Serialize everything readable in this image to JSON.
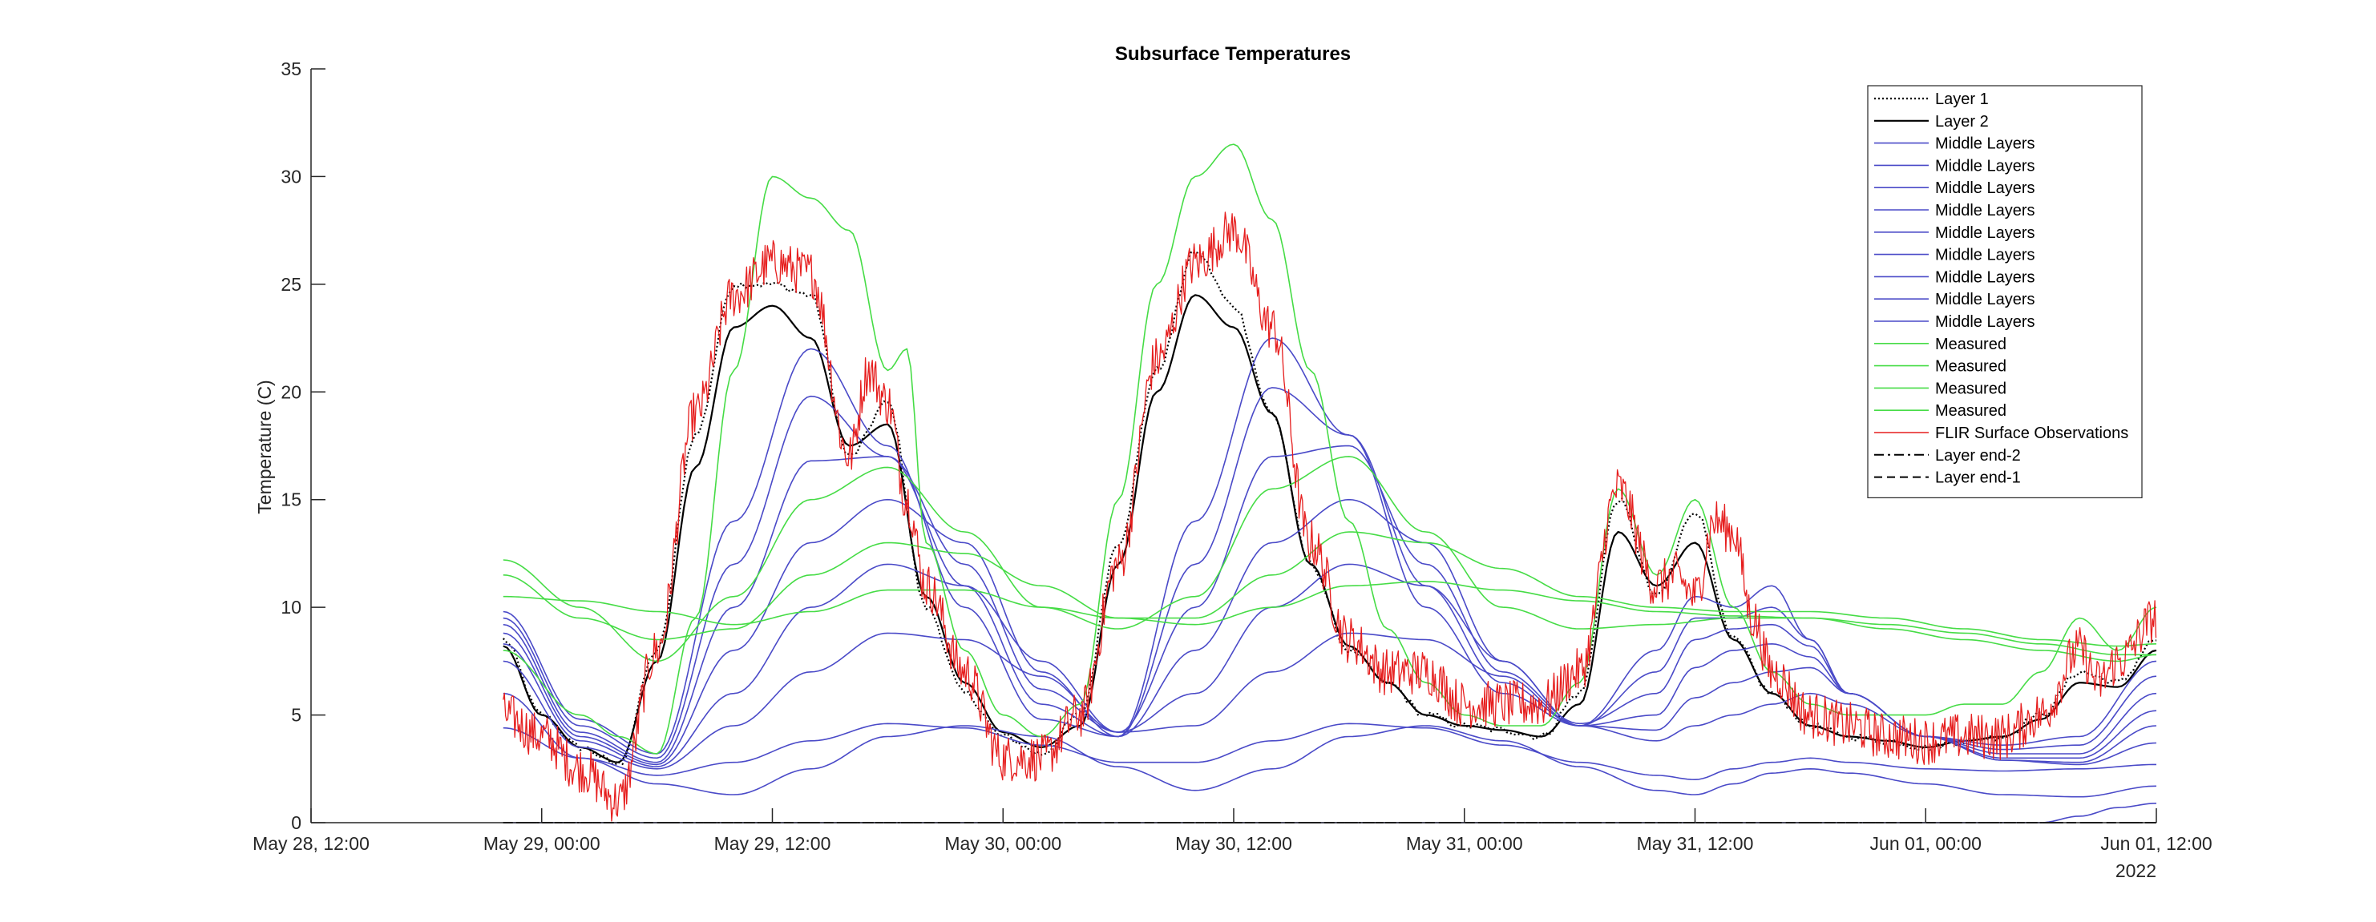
{
  "chart_data": {
    "type": "line",
    "title": "Subsurface Temperatures",
    "ylabel": "Temperature (C)",
    "xlabel": "",
    "x_unit": "hours since May 28, 12:00 (2022)",
    "xlim": [
      0,
      96
    ],
    "ylim": [
      0,
      35
    ],
    "yticks": [
      0,
      5,
      10,
      15,
      20,
      25,
      30,
      35
    ],
    "xticks": [
      {
        "value": 0,
        "label": "May 28, 12:00"
      },
      {
        "value": 12,
        "label": "May 29, 00:00"
      },
      {
        "value": 24,
        "label": "May 29, 12:00"
      },
      {
        "value": 36,
        "label": "May 30, 00:00"
      },
      {
        "value": 48,
        "label": "May 30, 12:00"
      },
      {
        "value": 60,
        "label": "May 31, 00:00"
      },
      {
        "value": 72,
        "label": "May 31, 12:00"
      },
      {
        "value": 84,
        "label": "Jun 01, 00:00"
      },
      {
        "value": 96,
        "label": "Jun 01, 12:00"
      }
    ],
    "year_label": "2022",
    "grid": false,
    "legend_position": "top-right",
    "series": [
      {
        "name": "Layer 1",
        "color": "#000000",
        "style": "dotted",
        "width": 2.2,
        "x": [
          10,
          12,
          14,
          16,
          18,
          20,
          22,
          24,
          26,
          28,
          30,
          32,
          34,
          36,
          38,
          40,
          42,
          44,
          46,
          48,
          50,
          52,
          54,
          56,
          58,
          60,
          62,
          64,
          66,
          68,
          70,
          72,
          74,
          76,
          78,
          80,
          82,
          84,
          86,
          88,
          90,
          92,
          94,
          96
        ],
        "y": [
          8.5,
          5.0,
          3.5,
          2.7,
          8.0,
          18.0,
          25.0,
          25.0,
          24.5,
          17.0,
          19.5,
          10.0,
          6.0,
          4.0,
          3.2,
          5.0,
          13.0,
          21.0,
          26.5,
          24.0,
          19.0,
          12.0,
          8.0,
          6.5,
          5.0,
          4.5,
          4.3,
          4.0,
          6.0,
          15.0,
          10.5,
          14.5,
          8.5,
          6.0,
          4.5,
          4.0,
          3.8,
          3.5,
          3.8,
          4.0,
          5.0,
          7.0,
          6.5,
          8.5
        ]
      },
      {
        "name": "Layer 2",
        "color": "#000000",
        "style": "solid",
        "width": 2.2,
        "x": [
          10,
          12,
          14,
          16,
          18,
          20,
          22,
          24,
          26,
          28,
          30,
          32,
          34,
          36,
          38,
          40,
          42,
          44,
          46,
          48,
          50,
          52,
          54,
          56,
          58,
          60,
          62,
          64,
          66,
          68,
          70,
          72,
          74,
          76,
          78,
          80,
          82,
          84,
          86,
          88,
          90,
          92,
          94,
          96
        ],
        "y": [
          8.2,
          5.0,
          3.5,
          2.8,
          7.5,
          16.5,
          23.0,
          24.0,
          22.5,
          17.5,
          18.5,
          10.5,
          6.5,
          4.2,
          3.5,
          4.5,
          12.0,
          20.0,
          24.5,
          23.0,
          19.0,
          12.0,
          8.2,
          6.5,
          5.0,
          4.5,
          4.3,
          4.0,
          5.5,
          13.5,
          11.0,
          13.0,
          8.5,
          6.0,
          4.5,
          4.0,
          3.8,
          3.5,
          3.8,
          4.0,
          4.8,
          6.5,
          6.3,
          8.0
        ]
      },
      {
        "name": "Middle Layers",
        "color": "#4a4ac8",
        "style": "solid",
        "width": 1.6,
        "x": [
          10,
          14,
          18,
          22,
          26,
          30,
          34,
          38,
          42,
          46,
          50,
          54,
          58,
          62,
          66,
          70,
          72,
          74,
          76,
          78,
          80,
          84,
          88,
          92,
          96
        ],
        "y": [
          9.8,
          4.8,
          3.2,
          14.0,
          22.0,
          17.5,
          10.0,
          4.8,
          4.0,
          14.0,
          22.5,
          18.0,
          10.0,
          6.0,
          4.5,
          8.0,
          10.5,
          10.0,
          11.0,
          8.5,
          6.0,
          4.0,
          3.6,
          4.0,
          7.5
        ]
      },
      {
        "name": "Middle Layers",
        "color": "#4a4ac8",
        "style": "solid",
        "width": 1.6,
        "x": [
          10,
          14,
          18,
          22,
          26,
          30,
          34,
          38,
          42,
          46,
          50,
          54,
          58,
          62,
          66,
          70,
          72,
          74,
          76,
          78,
          80,
          84,
          88,
          92,
          96
        ],
        "y": [
          9.5,
          4.5,
          3.0,
          12.0,
          19.8,
          17.0,
          11.0,
          5.5,
          4.0,
          12.0,
          20.2,
          18.0,
          11.0,
          6.5,
          4.5,
          7.0,
          9.5,
          9.5,
          10.0,
          8.5,
          6.0,
          4.0,
          3.4,
          3.6,
          6.8
        ]
      },
      {
        "name": "Middle Layers",
        "color": "#4a4ac8",
        "style": "solid",
        "width": 1.6,
        "x": [
          10,
          14,
          18,
          22,
          26,
          30,
          34,
          38,
          42,
          46,
          50,
          54,
          58,
          62,
          66,
          70,
          72,
          74,
          76,
          78,
          80,
          84,
          88,
          92,
          96
        ],
        "y": [
          9.2,
          4.2,
          2.8,
          10.0,
          16.8,
          17.0,
          12.0,
          6.2,
          4.2,
          10.0,
          17.0,
          17.5,
          12.0,
          7.0,
          4.6,
          6.0,
          8.5,
          9.0,
          9.2,
          8.2,
          6.0,
          4.0,
          3.2,
          3.2,
          6.0
        ]
      },
      {
        "name": "Middle Layers",
        "color": "#4a4ac8",
        "style": "solid",
        "width": 1.6,
        "x": [
          10,
          14,
          18,
          22,
          26,
          30,
          34,
          38,
          42,
          46,
          50,
          54,
          58,
          62,
          66,
          70,
          72,
          74,
          76,
          78,
          80,
          84,
          88,
          92,
          96
        ],
        "y": [
          8.8,
          4.0,
          2.7,
          8.0,
          13.0,
          15.0,
          13.0,
          7.0,
          4.0,
          8.0,
          13.0,
          15.0,
          13.0,
          7.5,
          4.5,
          5.0,
          7.2,
          8.0,
          8.3,
          7.7,
          6.0,
          4.0,
          3.0,
          3.0,
          5.2
        ]
      },
      {
        "name": "Middle Layers",
        "color": "#4a4ac8",
        "style": "solid",
        "width": 1.6,
        "x": [
          10,
          14,
          18,
          22,
          26,
          30,
          34,
          38,
          42,
          46,
          50,
          54,
          58,
          62,
          66,
          70,
          72,
          74,
          76,
          78,
          80,
          84,
          88,
          92,
          96
        ],
        "y": [
          8.3,
          3.8,
          2.6,
          6.0,
          10.0,
          12.0,
          11.0,
          7.5,
          4.2,
          6.0,
          10.0,
          12.0,
          11.0,
          7.5,
          4.5,
          4.3,
          5.8,
          6.5,
          7.0,
          7.2,
          6.0,
          4.0,
          2.9,
          2.8,
          4.5
        ]
      },
      {
        "name": "Middle Layers",
        "color": "#4a4ac8",
        "style": "solid",
        "width": 1.6,
        "x": [
          10,
          14,
          18,
          22,
          26,
          30,
          34,
          38,
          42,
          46,
          50,
          54,
          58,
          62,
          66,
          70,
          72,
          74,
          76,
          78,
          80,
          84,
          88,
          92,
          96
        ],
        "y": [
          7.5,
          3.5,
          2.5,
          4.5,
          7.0,
          8.8,
          8.5,
          6.8,
          4.2,
          4.5,
          7.0,
          8.8,
          8.5,
          6.8,
          4.5,
          3.8,
          4.5,
          5.0,
          5.5,
          6.0,
          5.5,
          4.0,
          2.9,
          2.7,
          3.7
        ]
      },
      {
        "name": "Middle Layers",
        "color": "#4a4ac8",
        "style": "solid",
        "width": 1.6,
        "x": [
          10,
          14,
          18,
          22,
          26,
          30,
          34,
          38,
          42,
          46,
          50,
          54,
          58,
          62,
          66,
          70,
          72,
          74,
          76,
          78,
          80,
          84,
          88,
          92,
          96
        ],
        "y": [
          6.0,
          3.0,
          2.2,
          2.8,
          3.8,
          4.6,
          4.4,
          3.6,
          2.8,
          2.8,
          3.8,
          4.6,
          4.4,
          3.6,
          2.8,
          2.2,
          2.0,
          2.5,
          2.8,
          3.0,
          2.8,
          2.5,
          2.4,
          2.5,
          2.7
        ]
      },
      {
        "name": "Middle Layers",
        "color": "#4a4ac8",
        "style": "solid",
        "width": 1.6,
        "x": [
          10,
          14,
          18,
          22,
          26,
          30,
          34,
          38,
          42,
          46,
          50,
          54,
          58,
          62,
          66,
          70,
          72,
          74,
          76,
          78,
          80,
          84,
          88,
          92,
          96
        ],
        "y": [
          4.4,
          3.0,
          1.8,
          1.3,
          2.5,
          4.0,
          4.5,
          4.0,
          2.6,
          1.5,
          2.5,
          4.0,
          4.5,
          3.8,
          2.6,
          1.5,
          1.3,
          1.8,
          2.3,
          2.5,
          2.3,
          1.8,
          1.3,
          1.2,
          1.7
        ]
      },
      {
        "name": "Middle Layers",
        "color": "#4a4ac8",
        "style": "solid",
        "width": 1.6,
        "x": [
          10,
          20,
          40,
          60,
          70,
          76,
          80,
          84,
          88,
          90,
          92,
          94,
          96
        ],
        "y": [
          0,
          0,
          0,
          0,
          0,
          0,
          0,
          0,
          0,
          0,
          0.3,
          0.7,
          0.9
        ]
      },
      {
        "name": "Measured",
        "color": "#46dc46",
        "style": "solid",
        "width": 1.6,
        "x": [
          10,
          14,
          16,
          18,
          20,
          22,
          24,
          26,
          28,
          30,
          31,
          32,
          34,
          36,
          38,
          40,
          42,
          44,
          46,
          48,
          50,
          52,
          54,
          56,
          58,
          60,
          62,
          64,
          66,
          68,
          70,
          72,
          74,
          76,
          78,
          80,
          82,
          84,
          86,
          88,
          90,
          92,
          94,
          96
        ],
        "y": [
          8.0,
          5.0,
          4.0,
          3.2,
          9.5,
          21.0,
          30.0,
          29.0,
          27.5,
          21.0,
          22.0,
          13.0,
          8.0,
          5.0,
          4.0,
          5.5,
          15.0,
          25.0,
          30.0,
          31.5,
          28.0,
          21.0,
          14.0,
          9.0,
          6.5,
          5.0,
          4.5,
          4.5,
          6.5,
          15.5,
          11.5,
          15.0,
          10.0,
          7.0,
          5.5,
          5.0,
          5.0,
          5.0,
          5.5,
          5.5,
          7.0,
          9.5,
          8.0,
          10.0
        ]
      },
      {
        "name": "Measured",
        "color": "#46dc46",
        "style": "solid",
        "width": 1.6,
        "x": [
          10,
          14,
          18,
          22,
          26,
          30,
          34,
          38,
          42,
          46,
          50,
          54,
          58,
          62,
          66,
          70,
          74,
          78,
          82,
          86,
          90,
          94,
          96
        ],
        "y": [
          12.2,
          10.0,
          7.5,
          10.5,
          15.0,
          16.5,
          13.5,
          10.0,
          9.0,
          10.5,
          15.5,
          17.0,
          13.5,
          10.0,
          9.0,
          9.2,
          9.5,
          9.5,
          9.0,
          8.5,
          8.0,
          7.5,
          7.8
        ]
      },
      {
        "name": "Measured",
        "color": "#46dc46",
        "style": "solid",
        "width": 1.6,
        "x": [
          10,
          14,
          18,
          22,
          26,
          30,
          34,
          38,
          42,
          46,
          50,
          54,
          58,
          62,
          66,
          70,
          74,
          78,
          82,
          86,
          90,
          94,
          96
        ],
        "y": [
          11.5,
          9.5,
          8.5,
          9.0,
          11.5,
          13.0,
          12.5,
          11.0,
          9.5,
          9.5,
          11.5,
          13.5,
          13.0,
          11.8,
          10.5,
          10.0,
          9.8,
          9.8,
          9.5,
          9.0,
          8.5,
          8.2,
          8.3
        ]
      },
      {
        "name": "Measured",
        "color": "#46dc46",
        "style": "solid",
        "width": 1.6,
        "x": [
          10,
          14,
          18,
          22,
          26,
          30,
          34,
          38,
          42,
          46,
          50,
          54,
          58,
          62,
          66,
          70,
          74,
          78,
          82,
          86,
          90,
          94,
          96
        ],
        "y": [
          10.5,
          10.3,
          9.8,
          9.2,
          9.8,
          10.8,
          10.8,
          10.0,
          9.5,
          9.2,
          10.0,
          11.0,
          11.2,
          10.8,
          10.3,
          9.8,
          9.6,
          9.5,
          9.2,
          8.8,
          8.3,
          7.8,
          7.8
        ]
      },
      {
        "name": "FLIR Surface Observations",
        "color": "#e61e1e",
        "style": "noisy",
        "width": 1.3,
        "x": [
          10,
          12,
          14,
          16,
          18,
          20,
          22,
          24,
          26,
          28,
          29,
          30,
          31,
          32,
          34,
          36,
          38,
          40,
          42,
          44,
          46,
          48,
          50,
          52,
          54,
          56,
          58,
          60,
          62,
          64,
          66,
          68,
          70,
          71,
          72,
          73,
          74,
          75,
          76,
          78,
          80,
          82,
          84,
          86,
          88,
          90,
          92,
          93,
          94,
          96
        ],
        "y": [
          5.0,
          4.0,
          2.5,
          1.0,
          8.0,
          19.0,
          24.5,
          26.0,
          25.5,
          17.0,
          21.0,
          19.5,
          15.0,
          11.0,
          7.0,
          3.0,
          3.0,
          5.0,
          12.0,
          21.5,
          26.0,
          27.5,
          23.0,
          13.0,
          8.5,
          7.0,
          7.0,
          5.5,
          5.5,
          5.5,
          7.0,
          15.5,
          11.0,
          11.5,
          10.5,
          14.0,
          13.5,
          9.5,
          7.0,
          5.0,
          4.5,
          4.0,
          3.8,
          4.0,
          4.0,
          5.0,
          8.0,
          6.5,
          7.5,
          9.5
        ]
      },
      {
        "name": "Layer end-2",
        "color": "#000000",
        "style": "dashdot",
        "width": 2,
        "x": [
          10,
          96
        ],
        "y": [
          0,
          0
        ]
      },
      {
        "name": "Layer end-1",
        "color": "#000000",
        "style": "dashed",
        "width": 2,
        "x": [
          10,
          96
        ],
        "y": [
          0,
          0
        ]
      }
    ]
  }
}
